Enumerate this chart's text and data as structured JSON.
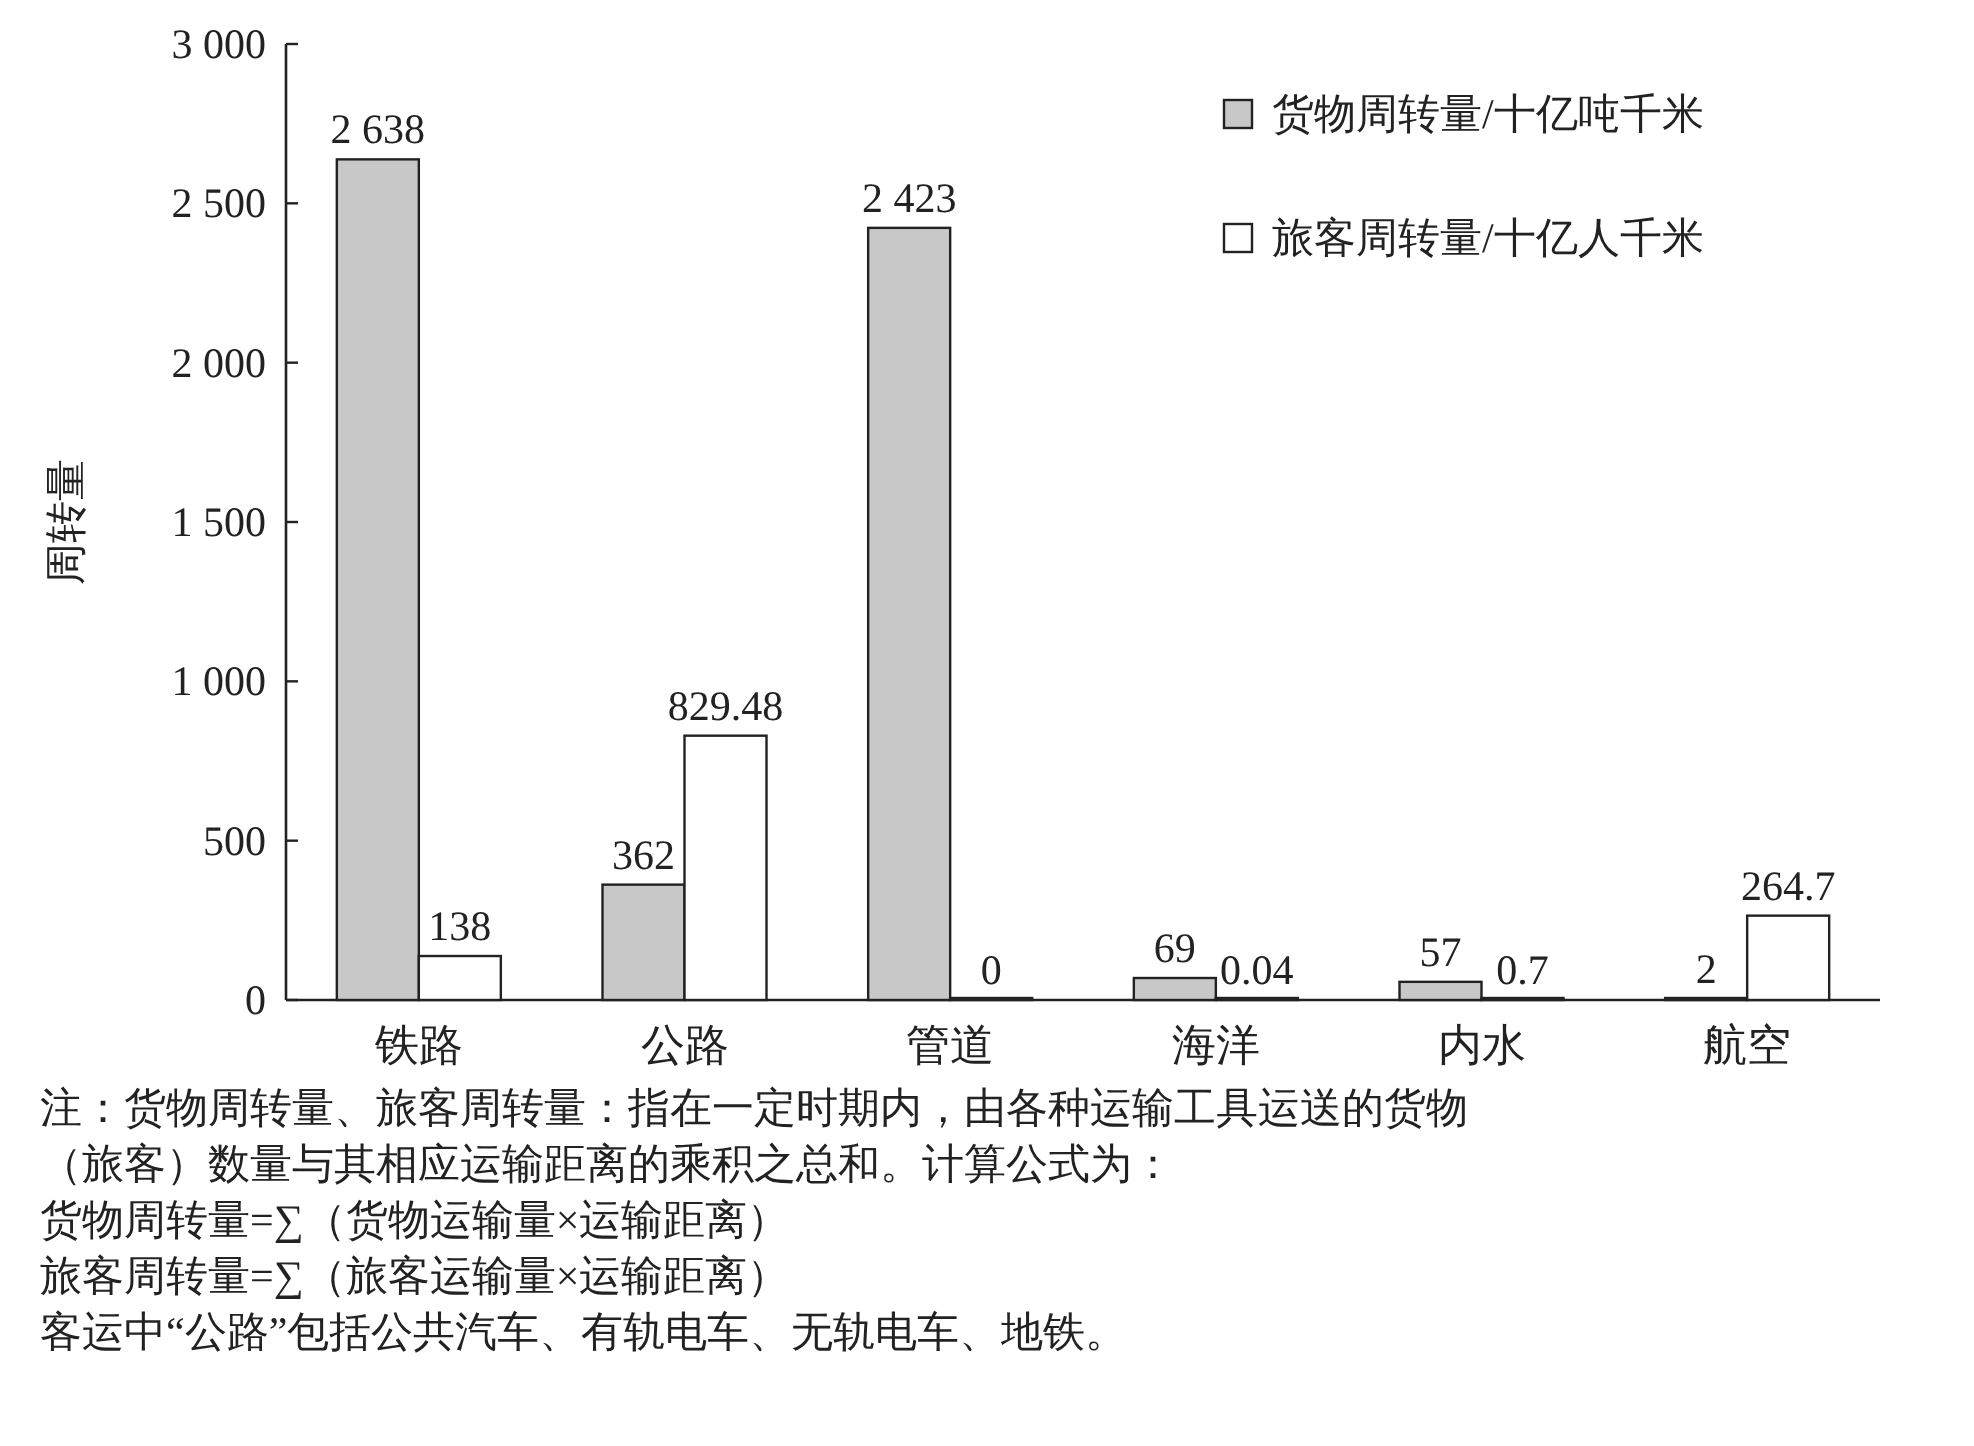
{
  "chart_data": {
    "type": "bar",
    "ylabel": "周转量",
    "categories": [
      "铁路",
      "公路",
      "管道",
      "海洋",
      "内水",
      "航空"
    ],
    "series": [
      {
        "name": "货物周转量/十亿吨千米",
        "color": "#c8c8c8",
        "values": [
          2638,
          362,
          2423,
          69,
          57,
          2
        ],
        "value_labels": [
          "2 638",
          "362",
          "2 423",
          "69",
          "57",
          "2"
        ]
      },
      {
        "name": "旅客周转量/十亿人千米",
        "color": "#ffffff",
        "values": [
          138,
          829.48,
          0,
          0.04,
          0.7,
          264.7
        ],
        "value_labels": [
          "138",
          "829.48",
          "0",
          "0.04",
          "0.7",
          "264.7"
        ]
      }
    ],
    "ylim": [
      0,
      3000
    ],
    "yticks": [
      0,
      500,
      {
        "value": 1000,
        "label": "1 000"
      },
      {
        "value": 1500,
        "label": "1 500"
      },
      {
        "value": 2000,
        "label": "2 000"
      },
      {
        "value": 2500,
        "label": "2 500"
      },
      {
        "value": 3000,
        "label": "3 000"
      }
    ],
    "grid": false,
    "legend": "top right",
    "annotations": [
      "注：货物周转量、旅客周转量：指在一定时期内，由各种运输工具运送的货物（旅客）数量与其相应运输距离的乘积之总和。计算公式为：",
      "货物周转量=∑（货物运输量×运输距离）",
      "旅客周转量=∑（旅客运输量×运输距离）",
      "客运中“公路”包括公共汽车、有轨电车、无轨电车、地铁。"
    ]
  }
}
